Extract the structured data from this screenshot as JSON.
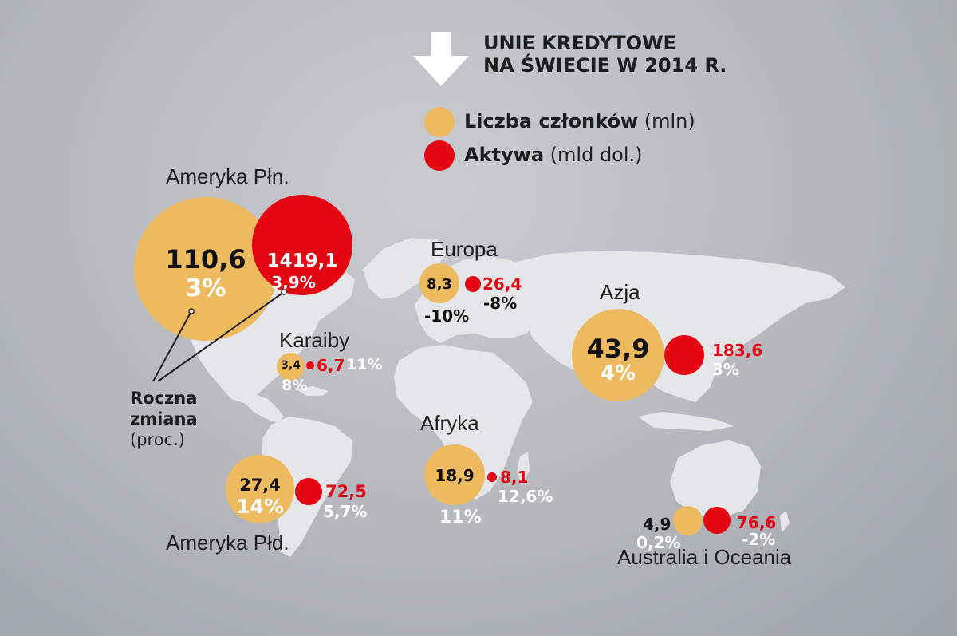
{
  "title": {
    "line1": "UNIE KREDYTOWE",
    "line2": "NA ŚWIECIE W 2014 R."
  },
  "legend": {
    "members": {
      "bold": "Liczba członków",
      "unit": "(mln)",
      "color": "#eeba60"
    },
    "assets": {
      "bold": "Aktywa",
      "unit": "(mld dol.)",
      "color": "#e30613"
    }
  },
  "annotation": {
    "line1": "Roczna",
    "line2": "zmiana",
    "line3": "(proc.)"
  },
  "icons": [
    "arrow-down-icon"
  ],
  "colors": {
    "members": "#eeba60",
    "assets": "#e30613",
    "land": "#e4e6e8",
    "background": "#b6babf"
  },
  "regions": [
    {
      "name": "Ameryka Płn.",
      "members": "110,6",
      "members_change": "3%",
      "assets": "1419,1",
      "assets_change": "3,9%"
    },
    {
      "name": "Karaiby",
      "members": "3,4",
      "members_change": "8%",
      "assets": "6,7",
      "assets_change": "11%"
    },
    {
      "name": "Ameryka Płd.",
      "members": "27,4",
      "members_change": "14%",
      "assets": "72,5",
      "assets_change": "5,7%"
    },
    {
      "name": "Europa",
      "members": "8,3",
      "members_change": "-10%",
      "assets": "26,4",
      "assets_change": "-8%"
    },
    {
      "name": "Afryka",
      "members": "18,9",
      "members_change": "11%",
      "assets": "8,1",
      "assets_change": "12,6%"
    },
    {
      "name": "Azja",
      "members": "43,9",
      "members_change": "4%",
      "assets": "183,6",
      "assets_change": "3%"
    },
    {
      "name": "Australia i Oceania",
      "members": "4,9",
      "members_change": "0,2%",
      "assets": "76,6",
      "assets_change": "-2%"
    }
  ]
}
